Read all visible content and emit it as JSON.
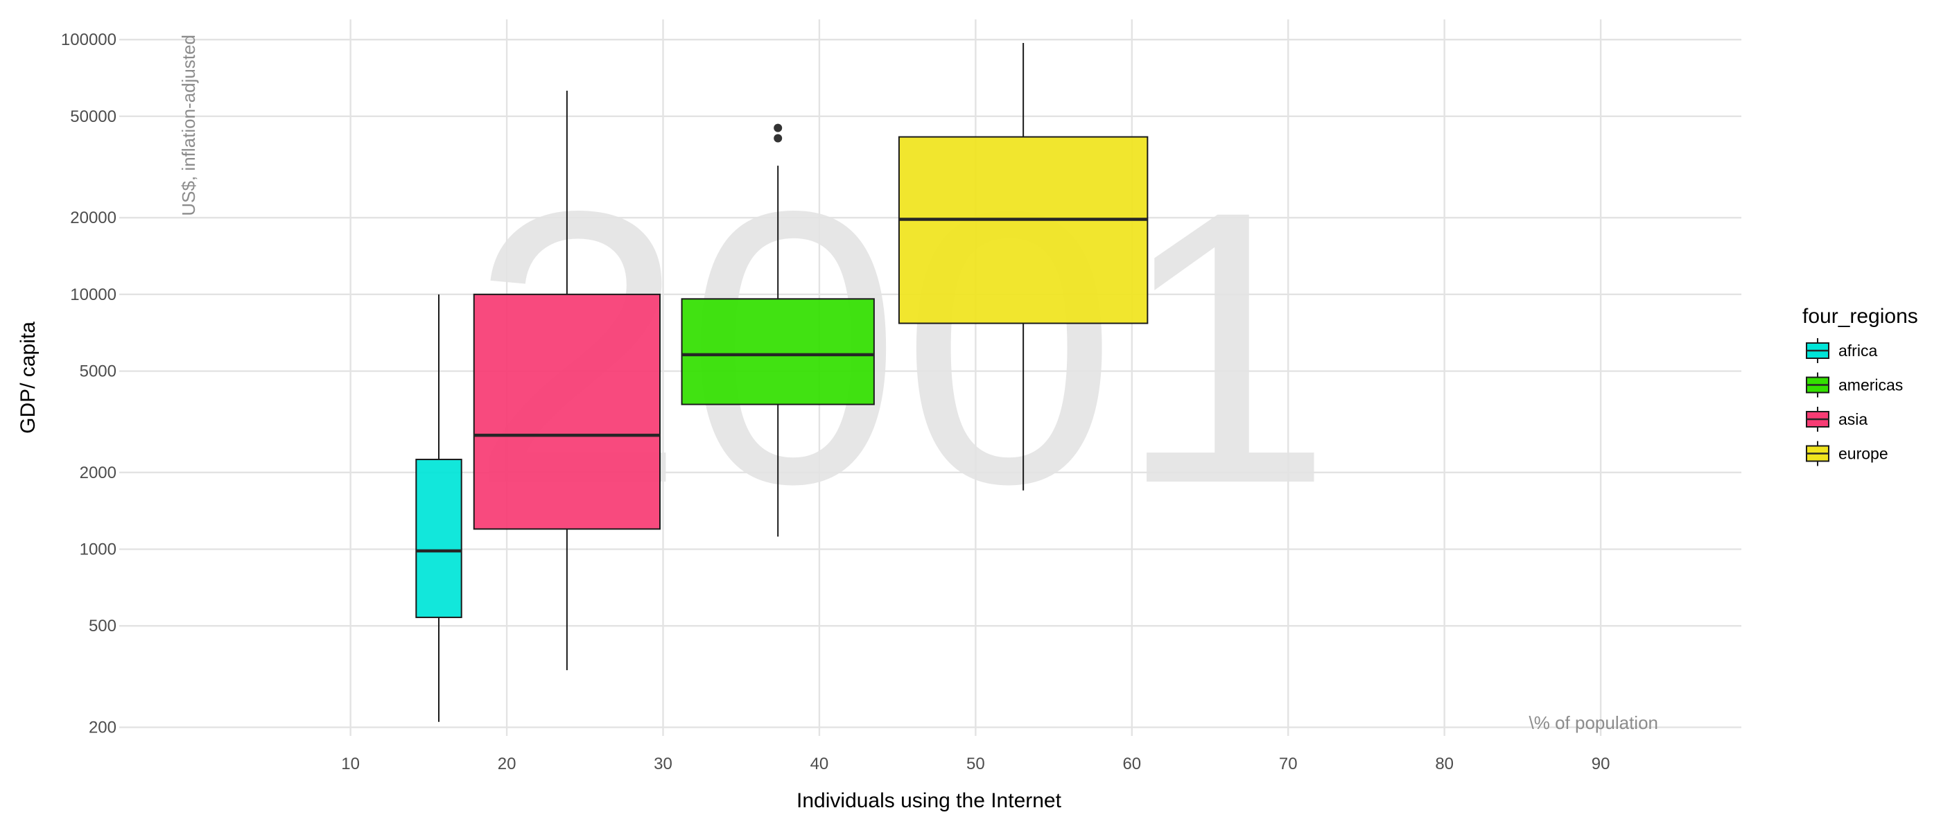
{
  "chart_data": {
    "type": "box",
    "title": "",
    "background_text": "2001",
    "xlabel": "Individuals using the Internet",
    "ylabel": "GDP/ capita",
    "x_annotation": "\\% of population",
    "y_annotation": "US$, inflation-adjusted",
    "x_scale": "linear",
    "y_scale": "log",
    "xlim": [
      -4.8,
      99
    ],
    "ylim": [
      185,
      120000
    ],
    "x_ticks": [
      10,
      20,
      30,
      40,
      50,
      60,
      70,
      80,
      90
    ],
    "x_tick_labels": [
      "10",
      "20",
      "30",
      "40",
      "50",
      "60",
      "70",
      "80",
      "90"
    ],
    "y_ticks": [
      200,
      500,
      1000,
      2000,
      5000,
      10000,
      20000,
      50000,
      100000
    ],
    "y_tick_labels": [
      "200",
      "500",
      "1000",
      "2000",
      "5000",
      "10000",
      "20000",
      "50000",
      "100000"
    ],
    "grid": true,
    "legend": {
      "title": "four_regions",
      "position": "right"
    },
    "series": [
      {
        "name": "africa",
        "color": "#00e5d8",
        "x_range": [
          14.2,
          17.1
        ],
        "whisker_low": 210,
        "q1": 540,
        "median": 985,
        "q3": 2250,
        "whisker_high": 10000,
        "outliers": []
      },
      {
        "name": "asia",
        "color": "#f73c74",
        "x_range": [
          17.9,
          29.8
        ],
        "whisker_low": 335,
        "q1": 1200,
        "median": 2800,
        "q3": 10000,
        "whisker_high": 63000,
        "outliers": []
      },
      {
        "name": "americas",
        "color": "#33e000",
        "x_range": [
          31.2,
          43.5
        ],
        "whisker_low": 1120,
        "q1": 3700,
        "median": 5800,
        "q3": 9600,
        "whisker_high": 32000,
        "outliers": [
          41000,
          45000
        ]
      },
      {
        "name": "europe",
        "color": "#f0e41e",
        "x_range": [
          45.1,
          61.0
        ],
        "whisker_low": 1700,
        "q1": 7700,
        "median": 19700,
        "q3": 41500,
        "whisker_high": 97000,
        "outliers": []
      }
    ],
    "legend_order": [
      "africa",
      "americas",
      "asia",
      "europe"
    ]
  }
}
